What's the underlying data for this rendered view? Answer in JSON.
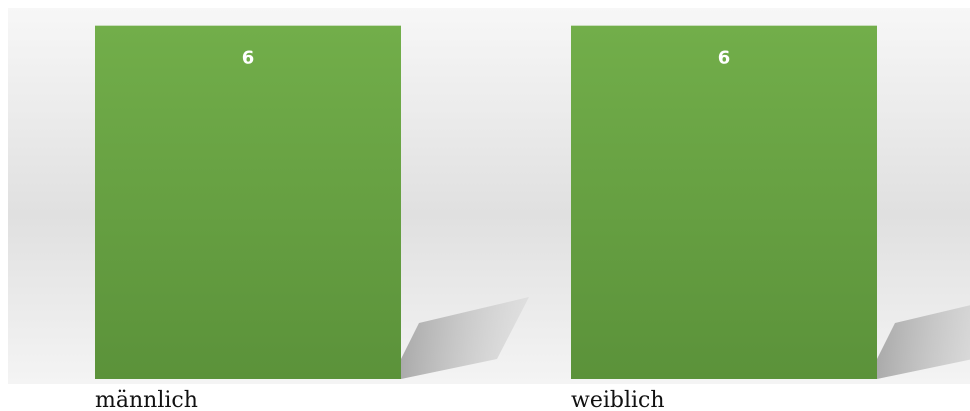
{
  "chart_data": {
    "type": "bar",
    "categories": [
      "männlich",
      "weiblich"
    ],
    "values": [
      6,
      6
    ],
    "data_labels": [
      "6",
      "6"
    ],
    "title": "",
    "xlabel": "",
    "ylabel": "",
    "ylim": [
      0,
      6.3
    ],
    "grid": false,
    "legend": "none",
    "colors": {
      "bar_top": "#72AE4A",
      "bar_bottom": "#5B923A",
      "backdrop_light": "#F5F5F5",
      "backdrop_mid": "#DFDFDF",
      "label_text": "#FFFFFF",
      "category_text": "#111111"
    }
  }
}
